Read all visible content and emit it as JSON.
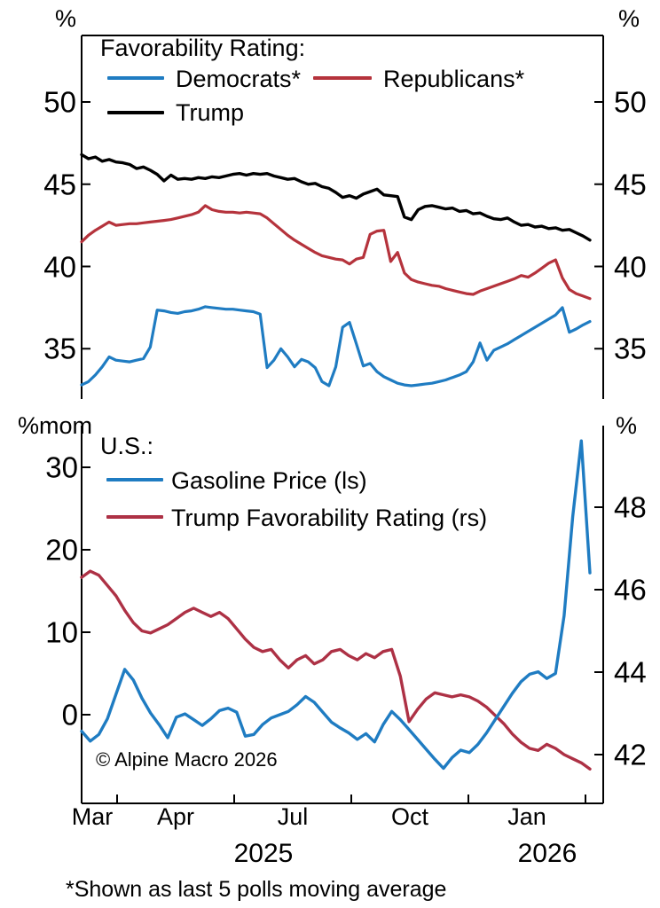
{
  "units": {
    "top_left": "%",
    "top_right": "%",
    "mid_left": "%mom",
    "mid_right": "%"
  },
  "copyright": "© Alpine Macro 2026",
  "footnote": "*Shown as last 5 polls moving average",
  "x_axis": {
    "month_labels": [
      "Mar",
      "Apr",
      "Jul",
      "Oct",
      "Jan"
    ],
    "year_labels": [
      "2025",
      "2026"
    ]
  },
  "top_panel": {
    "legend_title": "Favorability Rating:",
    "legend": [
      {
        "label": "Democrats*"
      },
      {
        "label": "Republicans*"
      },
      {
        "label": "Trump"
      }
    ]
  },
  "bottom_panel": {
    "legend_title": "U.S.:",
    "legend": [
      {
        "label": "Gasoline Price (ls)"
      },
      {
        "label": "Trump Favorability Rating (rs)"
      }
    ]
  },
  "chart_data": [
    {
      "panel": "top",
      "type": "line",
      "title": "Favorability Rating",
      "x_span": "Mar 2025 - Feb 2026",
      "y_axis": {
        "unit": "%",
        "ticks": [
          50,
          45,
          40,
          35
        ],
        "sides": "both",
        "approx_range": [
          32,
          54
        ]
      },
      "series": [
        {
          "name": "Democrats*",
          "color": "#1f7cc2",
          "values": [
            32.8,
            33.0,
            33.4,
            33.9,
            34.5,
            34.3,
            34.25,
            34.2,
            34.3,
            34.4,
            35.1,
            37.35,
            37.3,
            37.2,
            37.15,
            37.25,
            37.3,
            37.4,
            37.55,
            37.5,
            37.45,
            37.4,
            37.4,
            37.35,
            37.3,
            37.25,
            37.1,
            33.85,
            34.3,
            35.0,
            34.5,
            33.9,
            34.35,
            34.2,
            33.85,
            33.0,
            32.75,
            33.9,
            36.3,
            36.6,
            35.3,
            33.95,
            34.1,
            33.6,
            33.3,
            33.1,
            32.9,
            32.8,
            32.75,
            32.8,
            32.85,
            32.9,
            33.0,
            33.1,
            33.25,
            33.4,
            33.6,
            34.2,
            35.35,
            34.3,
            34.9,
            35.1,
            35.3,
            35.55,
            35.8,
            36.05,
            36.3,
            36.55,
            36.8,
            37.05,
            37.5,
            36.0,
            36.2,
            36.45,
            36.65
          ]
        },
        {
          "name": "Republicans*",
          "color": "#b5333c",
          "values": [
            41.5,
            41.9,
            42.2,
            42.45,
            42.7,
            42.5,
            42.55,
            42.6,
            42.6,
            42.65,
            42.7,
            42.75,
            42.8,
            42.85,
            42.95,
            43.05,
            43.15,
            43.3,
            43.7,
            43.45,
            43.35,
            43.3,
            43.3,
            43.25,
            43.3,
            43.25,
            43.2,
            42.95,
            42.6,
            42.25,
            41.9,
            41.6,
            41.35,
            41.1,
            40.85,
            40.65,
            40.55,
            40.45,
            40.4,
            40.15,
            40.45,
            40.55,
            41.95,
            42.15,
            42.2,
            40.3,
            40.85,
            39.6,
            39.2,
            39.05,
            38.95,
            38.85,
            38.8,
            38.65,
            38.55,
            38.45,
            38.35,
            38.3,
            38.5,
            38.65,
            38.8,
            38.95,
            39.1,
            39.25,
            39.45,
            39.35,
            39.6,
            39.9,
            40.2,
            40.4,
            39.3,
            38.6,
            38.35,
            38.2,
            38.05
          ]
        },
        {
          "name": "Trump",
          "color": "#000000",
          "values": [
            46.8,
            46.55,
            46.65,
            46.4,
            46.5,
            46.35,
            46.3,
            46.2,
            45.95,
            46.05,
            45.85,
            45.6,
            45.2,
            45.55,
            45.3,
            45.35,
            45.3,
            45.4,
            45.35,
            45.45,
            45.4,
            45.5,
            45.6,
            45.65,
            45.55,
            45.65,
            45.6,
            45.65,
            45.5,
            45.4,
            45.3,
            45.35,
            45.15,
            45.0,
            45.05,
            44.85,
            44.75,
            44.5,
            44.2,
            44.3,
            44.15,
            44.4,
            44.55,
            44.7,
            44.35,
            44.3,
            44.25,
            43.0,
            42.85,
            43.45,
            43.65,
            43.7,
            43.6,
            43.5,
            43.55,
            43.35,
            43.4,
            43.2,
            43.25,
            43.05,
            42.9,
            42.85,
            42.95,
            42.7,
            42.5,
            42.55,
            42.4,
            42.45,
            42.3,
            42.35,
            42.2,
            42.25,
            42.05,
            41.85,
            41.6
          ]
        }
      ]
    },
    {
      "panel": "bottom",
      "type": "line",
      "title": "U.S.",
      "x_span": "Mar 2025 - Feb 2026",
      "left_axis": {
        "unit": "%mom",
        "ticks": [
          30,
          20,
          10,
          0
        ],
        "approx_range": [
          -11,
          35
        ]
      },
      "right_axis": {
        "unit": "%",
        "ticks": [
          48,
          46,
          44,
          42
        ],
        "approx_range": [
          40.8,
          50
        ]
      },
      "series": [
        {
          "name": "Trump Favorability Rating (rs)",
          "axis": "right",
          "color": "#ad3145",
          "values": [
            46.3,
            46.45,
            46.35,
            46.1,
            45.85,
            45.5,
            45.2,
            45.0,
            44.95,
            45.05,
            45.15,
            45.3,
            45.45,
            45.55,
            45.45,
            45.35,
            45.45,
            45.3,
            45.05,
            44.8,
            44.6,
            44.5,
            44.55,
            44.3,
            44.1,
            44.3,
            44.4,
            44.2,
            44.3,
            44.5,
            44.55,
            44.4,
            44.3,
            44.45,
            44.35,
            44.5,
            44.55,
            43.9,
            42.8,
            43.1,
            43.35,
            43.5,
            43.45,
            43.4,
            43.45,
            43.4,
            43.3,
            43.15,
            42.95,
            42.75,
            42.5,
            42.3,
            42.15,
            42.1,
            42.25,
            42.15,
            42.0,
            41.9,
            41.8,
            41.65
          ]
        },
        {
          "name": "Gasoline Price (ls)",
          "axis": "left",
          "color": "#1f7cc2",
          "values": [
            -2.0,
            -3.2,
            -2.4,
            -0.5,
            2.5,
            5.5,
            4.2,
            2.0,
            0.2,
            -1.2,
            -2.8,
            -0.3,
            0.1,
            -0.6,
            -1.3,
            -0.5,
            0.5,
            0.8,
            0.3,
            -2.6,
            -2.4,
            -1.2,
            -0.4,
            0.0,
            0.4,
            1.2,
            2.2,
            1.5,
            0.3,
            -0.9,
            -1.6,
            -2.2,
            -3.0,
            -2.3,
            -3.3,
            -1.2,
            0.4,
            -0.6,
            -1.8,
            -3.0,
            -4.2,
            -5.4,
            -6.5,
            -5.2,
            -4.3,
            -4.6,
            -3.6,
            -2.2,
            -0.6,
            1.0,
            2.6,
            4.0,
            4.9,
            5.2,
            4.4,
            5.0,
            12.0,
            24.0,
            33.2,
            17.2
          ]
        }
      ]
    }
  ]
}
